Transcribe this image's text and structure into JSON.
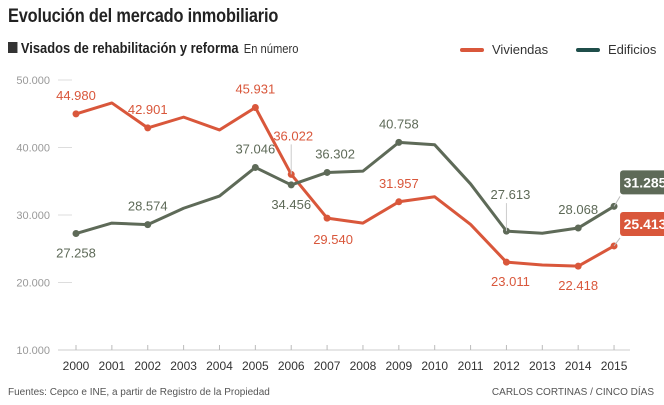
{
  "title": "Evolución del mercado inmobiliario",
  "subtitle": "Visados de rehabilitación y reforma",
  "unit": "En número",
  "source": "Fuentes: Cepco e INE, a partir de Registro de la Propiedad",
  "credit": "CARLOS CORTINAS / CINCO DÍAS",
  "chart_data": {
    "type": "line",
    "x": [
      2000,
      2001,
      2002,
      2003,
      2004,
      2005,
      2006,
      2007,
      2008,
      2009,
      2010,
      2011,
      2012,
      2013,
      2014,
      2015
    ],
    "ylim": [
      10000,
      50000
    ],
    "yticks": [
      10000,
      20000,
      30000,
      40000,
      50000
    ],
    "ytick_labels": [
      "10.000",
      "20.000",
      "30.000",
      "40.000",
      "50.000"
    ],
    "grid": false,
    "legend": "top-right",
    "series": [
      {
        "name": "Viviendas",
        "color": "#d9573b",
        "legend_color": "#d9573b",
        "values": [
          44980,
          46600,
          42901,
          44500,
          42600,
          45931,
          36022,
          29540,
          28800,
          31957,
          32700,
          28600,
          23011,
          22600,
          22418,
          25413
        ],
        "labels": {
          "2000": "44.980",
          "2002": "42.901",
          "2005": "45.931",
          "2006": "36.022",
          "2007": "29.540",
          "2009": "31.957",
          "2012": "23.011",
          "2014": "22.418",
          "2015": "25.413"
        }
      },
      {
        "name": "Edificios",
        "color": "#5e6a58",
        "legend_color": "#1f4e4a",
        "values": [
          27258,
          28800,
          28574,
          31000,
          32800,
          37046,
          34456,
          36302,
          36500,
          40758,
          40400,
          34600,
          27613,
          27300,
          28068,
          31285
        ],
        "labels": {
          "2000": "27.258",
          "2002": "28.574",
          "2005": "37.046",
          "2006": "34.456",
          "2007": "36.302",
          "2009": "40.758",
          "2012": "27.613",
          "2014": "28.068",
          "2015": "31.285"
        }
      }
    ]
  }
}
